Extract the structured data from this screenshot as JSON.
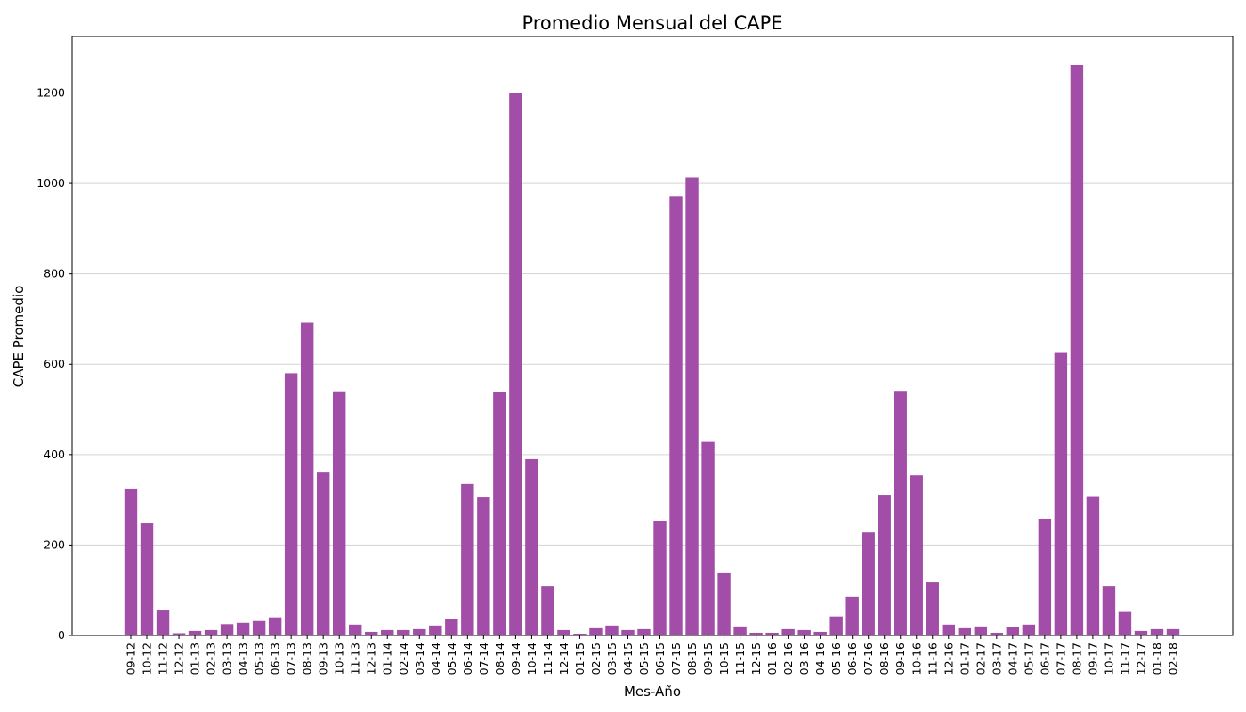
{
  "chart_data": {
    "type": "bar",
    "title": "Promedio Mensual del CAPE",
    "xlabel": "Mes-Año",
    "ylabel": "CAPE Promedio",
    "ylim": [
      0,
      1325
    ],
    "yticks": [
      0,
      200,
      400,
      600,
      800,
      1000,
      1200
    ],
    "grid": "y",
    "bar_color": "#a24ea8",
    "categories": [
      "09-12",
      "10-12",
      "11-12",
      "12-12",
      "01-13",
      "02-13",
      "03-13",
      "04-13",
      "05-13",
      "06-13",
      "07-13",
      "08-13",
      "09-13",
      "10-13",
      "11-13",
      "12-13",
      "01-14",
      "02-14",
      "03-14",
      "04-14",
      "05-14",
      "06-14",
      "07-14",
      "08-14",
      "09-14",
      "10-14",
      "11-14",
      "12-14",
      "01-15",
      "02-15",
      "03-15",
      "04-15",
      "05-15",
      "06-15",
      "07-15",
      "08-15",
      "09-15",
      "10-15",
      "11-15",
      "12-15",
      "01-16",
      "02-16",
      "03-16",
      "04-16",
      "05-16",
      "06-16",
      "07-16",
      "08-16",
      "09-16",
      "10-16",
      "11-16",
      "12-16",
      "01-17",
      "02-17",
      "03-17",
      "04-17",
      "05-17",
      "06-17",
      "07-17",
      "08-17",
      "09-17",
      "10-17",
      "11-17",
      "12-17",
      "01-18",
      "02-18"
    ],
    "values": [
      325,
      248,
      57,
      5,
      10,
      12,
      25,
      28,
      32,
      40,
      580,
      692,
      362,
      540,
      24,
      8,
      12,
      12,
      14,
      22,
      36,
      335,
      307,
      538,
      1200,
      390,
      110,
      12,
      4,
      16,
      22,
      12,
      14,
      254,
      972,
      1013,
      428,
      138,
      20,
      6,
      6,
      14,
      12,
      8,
      42,
      85,
      228,
      311,
      541,
      354,
      118,
      24,
      16,
      20,
      6,
      18,
      24,
      258,
      625,
      1262,
      308,
      110,
      52,
      10,
      14,
      14
    ]
  }
}
